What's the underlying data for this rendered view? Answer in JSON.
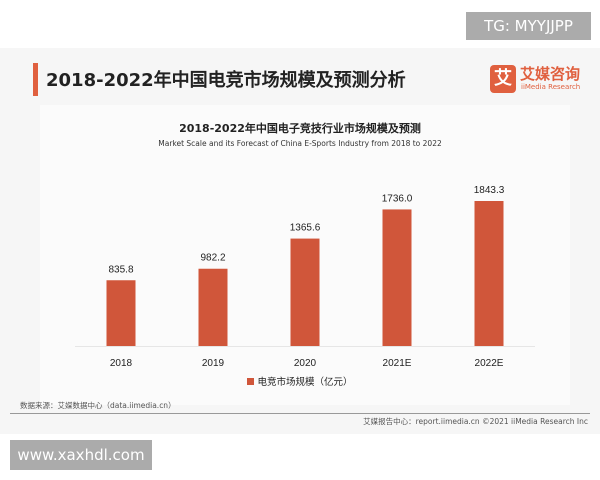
{
  "header": {
    "title": "2018-2022年中国电竞市场规模及预测分析"
  },
  "logo": {
    "mark": "艾",
    "cn": "艾媒咨询",
    "en": "iiMedia Research"
  },
  "chart_data": {
    "type": "bar",
    "title": "2018-2022年中国电子竞技行业市场规模及预测",
    "subtitle": "Market Scale and its Forecast of China E-Sports Industry from 2018 to 2022",
    "categories": [
      "2018",
      "2019",
      "2020",
      "2021E",
      "2022E"
    ],
    "series": [
      {
        "name": "电竞市场规模（亿元）",
        "values": [
          835.8,
          982.2,
          1365.6,
          1736.0,
          1843.3
        ],
        "labels": [
          "835.8",
          "982.2",
          "1365.6",
          "1736.0",
          "1843.3"
        ]
      }
    ],
    "ylim": [
      0,
      1843.3
    ],
    "grid": false,
    "legend_placement": "bottom",
    "color": "#d0563a"
  },
  "source": "数据来源：艾媒数据中心（data.iimedia.cn）",
  "footer": "艾媒报告中心：report.iimedia.cn   ©2021  iiMedia Research  Inc",
  "watermarks": {
    "top": "TG: MYYJJPP",
    "bottom": "www.xaxhdl.com"
  }
}
